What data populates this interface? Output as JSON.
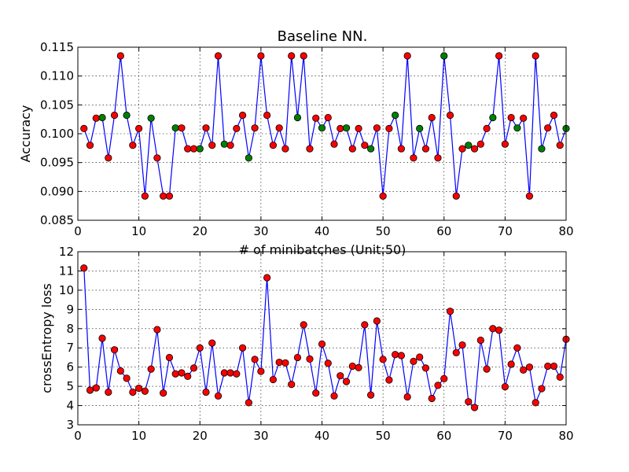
{
  "chart_data": [
    {
      "type": "line",
      "title": "Baseline NN.",
      "xlabel": "# of minibatches (Unit:50)",
      "ylabel": "Accuracy",
      "xlim": [
        0,
        80
      ],
      "ylim": [
        0.085,
        0.115
      ],
      "xticks": [
        "0",
        "10",
        "20",
        "30",
        "40",
        "50",
        "60",
        "70",
        "80"
      ],
      "yticks": [
        "0.085",
        "0.090",
        "0.095",
        "0.100",
        "0.105",
        "0.110",
        "0.115"
      ],
      "grid": true,
      "line_color": "#0000ff",
      "marker_colors": {
        "red": "#ff0000",
        "green": "#008000"
      },
      "x": [
        1,
        2,
        3,
        4,
        5,
        6,
        7,
        8,
        9,
        10,
        11,
        12,
        13,
        14,
        15,
        16,
        17,
        18,
        19,
        20,
        21,
        22,
        23,
        24,
        25,
        26,
        27,
        28,
        29,
        30,
        31,
        32,
        33,
        34,
        35,
        36,
        37,
        38,
        39,
        40,
        41,
        42,
        43,
        44,
        45,
        46,
        47,
        48,
        49,
        50,
        51,
        52,
        53,
        54,
        55,
        56,
        57,
        58,
        59,
        60,
        61,
        62,
        63,
        64,
        65,
        66,
        67,
        68,
        69,
        70,
        71,
        72,
        73,
        74,
        75,
        76,
        77,
        78,
        79,
        80
      ],
      "values": [
        0.1009,
        0.098,
        0.1027,
        0.1028,
        0.0958,
        0.1032,
        0.1135,
        0.1032,
        0.098,
        0.1009,
        0.0892,
        0.1027,
        0.0958,
        0.0892,
        0.0892,
        0.101,
        0.101,
        0.0974,
        0.0974,
        0.0974,
        0.101,
        0.098,
        0.1135,
        0.0982,
        0.098,
        0.1009,
        0.1032,
        0.0958,
        0.101,
        0.1135,
        0.1032,
        0.098,
        0.101,
        0.0974,
        0.1135,
        0.1028,
        0.1135,
        0.0974,
        0.1027,
        0.101,
        0.1028,
        0.0982,
        0.1009,
        0.101,
        0.0974,
        0.1009,
        0.098,
        0.0974,
        0.101,
        0.0892,
        0.1009,
        0.1032,
        0.0974,
        0.1135,
        0.0958,
        0.1009,
        0.0974,
        0.1028,
        0.0958,
        0.1135,
        0.1032,
        0.0892,
        0.0974,
        0.098,
        0.0974,
        0.0982,
        0.1009,
        0.1028,
        0.1135,
        0.0982,
        0.1028,
        0.101,
        0.1027,
        0.0892,
        0.1135,
        0.0974,
        0.101,
        0.1032,
        0.098,
        0.1009
      ],
      "marker_color_per_point": [
        "red",
        "red",
        "red",
        "green",
        "red",
        "red",
        "red",
        "green",
        "red",
        "red",
        "red",
        "green",
        "red",
        "red",
        "red",
        "green",
        "red",
        "red",
        "red",
        "green",
        "red",
        "red",
        "red",
        "green",
        "red",
        "red",
        "red",
        "green",
        "red",
        "red",
        "red",
        "red",
        "red",
        "red",
        "red",
        "green",
        "red",
        "red",
        "red",
        "green",
        "red",
        "red",
        "red",
        "green",
        "red",
        "red",
        "red",
        "green",
        "red",
        "red",
        "red",
        "green",
        "red",
        "red",
        "red",
        "green",
        "red",
        "red",
        "red",
        "green",
        "red",
        "red",
        "red",
        "green",
        "red",
        "red",
        "red",
        "green",
        "red",
        "red",
        "red",
        "green",
        "red",
        "red",
        "red",
        "green",
        "red",
        "red",
        "red",
        "green"
      ]
    },
    {
      "type": "line",
      "title": "",
      "xlabel": "",
      "ylabel": "crossEntropy loss",
      "xlim": [
        0,
        80
      ],
      "ylim": [
        3,
        12
      ],
      "xticks": [
        "0",
        "10",
        "20",
        "30",
        "40",
        "50",
        "60",
        "70",
        "80"
      ],
      "yticks": [
        "3",
        "4",
        "5",
        "6",
        "7",
        "8",
        "9",
        "10",
        "11",
        "12"
      ],
      "grid": true,
      "line_color": "#0000ff",
      "marker_color": "#ff0000",
      "x": [
        1,
        2,
        3,
        4,
        5,
        6,
        7,
        8,
        9,
        10,
        11,
        12,
        13,
        14,
        15,
        16,
        17,
        18,
        19,
        20,
        21,
        22,
        23,
        24,
        25,
        26,
        27,
        28,
        29,
        30,
        31,
        32,
        33,
        34,
        35,
        36,
        37,
        38,
        39,
        40,
        41,
        42,
        43,
        44,
        45,
        46,
        47,
        48,
        49,
        50,
        51,
        52,
        53,
        54,
        55,
        56,
        57,
        58,
        59,
        60,
        61,
        62,
        63,
        64,
        65,
        66,
        67,
        68,
        69,
        70,
        71,
        72,
        73,
        74,
        75,
        76,
        77,
        78,
        79,
        80
      ],
      "values": [
        11.15,
        4.8,
        4.92,
        7.5,
        4.7,
        6.9,
        5.8,
        5.42,
        4.7,
        4.9,
        4.75,
        5.9,
        7.95,
        4.65,
        6.5,
        5.65,
        5.7,
        5.52,
        5.95,
        7.0,
        4.7,
        7.25,
        4.5,
        5.7,
        5.7,
        5.65,
        7.0,
        4.15,
        6.4,
        5.78,
        10.65,
        5.35,
        6.25,
        6.22,
        5.1,
        6.5,
        8.2,
        6.42,
        4.65,
        7.2,
        6.2,
        4.5,
        5.55,
        5.25,
        6.05,
        5.97,
        8.2,
        4.55,
        8.4,
        6.4,
        5.33,
        6.65,
        6.6,
        4.45,
        6.3,
        6.52,
        5.95,
        4.37,
        5.05,
        5.4,
        8.9,
        6.75,
        7.15,
        4.2,
        3.9,
        7.4,
        5.9,
        8.0,
        7.92,
        4.98,
        6.15,
        7.0,
        5.85,
        6.0,
        4.15,
        4.88,
        6.05,
        6.05,
        5.48,
        7.45
      ]
    }
  ]
}
